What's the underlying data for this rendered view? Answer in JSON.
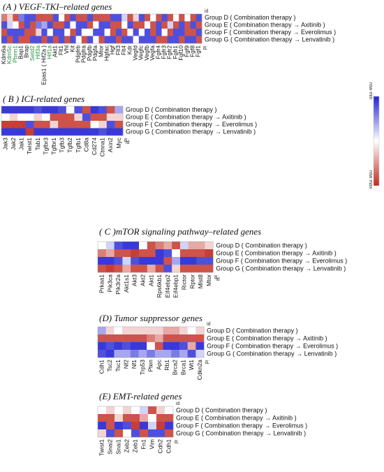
{
  "legend": {
    "top_label": "row min",
    "bottom_label": "row max",
    "colors": {
      "min": "#2323d6",
      "mid": "#ffffff",
      "max": "#c0281e"
    }
  },
  "id_label": "id",
  "chart_data": [
    {
      "type": "heatmap",
      "title": "(A ) VEGF-TKI–related genes",
      "rows": [
        "Group D ( Combination therapy )",
        "Group E ( Combination therapy → Axitinib )",
        "Group F ( Combination therapy → Everolimus )",
        "Group G ( Combination therapy → Lenvatinib )"
      ],
      "columns": [
        "Kdm6a",
        "Kdm5c",
        "Pbrm1",
        "Bap1",
        "Brap",
        "Setd2",
        "Hif3a",
        "Epas1 ( Hif2a )",
        "Hif1a",
        "Akt1",
        "Flt1",
        "Vhl",
        "Kit",
        "Pdgfrb",
        "Pdgfra",
        "Pdgfb",
        "Pdgfa",
        "Mtor",
        "Hgfac",
        "Hgf",
        "Flt3",
        "Flt4",
        "Kdr",
        "Vegfd",
        "Vegfc",
        "Vegfb",
        "Vegfa",
        "Fgfr4",
        "Fgfr3",
        "Fgfr2",
        "Fgfr1",
        "Fgf10",
        "Fgf9",
        "Fgf8",
        "Fgf1"
      ],
      "green_columns": [
        "Kdm5c",
        "Pbrm1",
        "Setd2",
        "Hif3a",
        "Hif1a"
      ],
      "values": [
        [
          0.8,
          0.6,
          0.9,
          0.2,
          0.1,
          0.1,
          0.9,
          0.9,
          0.9,
          0.1,
          0.5,
          0.9,
          0.1,
          0.9,
          0.9,
          0.1,
          0.9,
          0.9,
          0.9,
          0.1,
          0.1,
          0.4,
          0.9,
          0.6,
          0.1,
          0.9,
          0.5,
          0.9,
          0.1,
          0.9,
          0.5,
          0.9,
          0.5,
          0.9,
          0.1
        ],
        [
          0.1,
          0.4,
          0.5,
          0.9,
          0.1,
          0.9,
          0.2,
          0.3,
          0.1,
          0.9,
          0.9,
          0.1,
          0.5,
          0.1,
          0.1,
          0.9,
          0.5,
          0.1,
          0.1,
          0.9,
          0.9,
          0.5,
          0.1,
          0.9,
          0.9,
          0.5,
          0.9,
          0.1,
          0.9,
          0.4,
          0.9,
          0.1,
          0.9,
          0.1,
          0.9
        ],
        [
          0.9,
          0.1,
          0.1,
          0.1,
          0.9,
          0.9,
          0.6,
          0.1,
          0.5,
          0.1,
          0.1,
          0.5,
          0.9,
          0.1,
          0.5,
          0.5,
          0.1,
          0.1,
          0.5,
          0.9,
          0.1,
          0.9,
          0.5,
          0.1,
          0.5,
          0.1,
          0.9,
          0.1,
          0.5,
          0.9,
          0.1,
          0.1,
          0.9,
          0.9,
          0.1
        ],
        [
          0.1,
          0.9,
          0.1,
          0.9,
          0.9,
          0.1,
          0.1,
          0.9,
          0.1,
          0.9,
          0.1,
          0.9,
          0.1,
          0.5,
          0.9,
          0.1,
          0.5,
          0.9,
          0.1,
          0.1,
          0.9,
          0.1,
          0.1,
          0.5,
          0.1,
          0.1,
          0.1,
          0.9,
          0.9,
          0.1,
          0.1,
          0.9,
          0.1,
          0.1,
          0.9
        ]
      ]
    },
    {
      "type": "heatmap",
      "title": "( B ) ICI-related genes",
      "rows": [
        "Group D ( Combination therapy )",
        "Group E ( Combination therapy → Axitinib )",
        "Group F ( Combination therapy → Everolimus )",
        "Group G ( Combination therapy → Lenvatinib )"
      ],
      "columns": [
        "Jak3",
        "Jak2",
        "Jak1",
        "Twist1",
        "Tab1",
        "Tgfbr3",
        "Tgfbr1",
        "Tgfb3",
        "Tgfb2",
        "Tgfb1",
        "Cd8a",
        "Cd274",
        "Ctnna1",
        "Axin2",
        "Myc"
      ],
      "values": [
        [
          0.05,
          0.05,
          0.05,
          0.05,
          0.1,
          0.05,
          0.05,
          0.1,
          0.5,
          0.1,
          0.9,
          0.05,
          0.1,
          0.9,
          0.3
        ],
        [
          0.5,
          0.6,
          0.5,
          0.5,
          0.6,
          0.5,
          0.9,
          0.9,
          0.9,
          0.6,
          0.1,
          0.9,
          0.9,
          0.6,
          0.6
        ],
        [
          0.95,
          0.95,
          0.95,
          0.1,
          0.9,
          0.9,
          0.6,
          0.9,
          0.9,
          0.9,
          0.9,
          0.5,
          0.6,
          0.1,
          0.9
        ],
        [
          0.05,
          0.05,
          0.05,
          0.95,
          0.05,
          0.05,
          0.05,
          0.05,
          0.05,
          0.05,
          0.05,
          0.05,
          0.1,
          0.05,
          0.05
        ]
      ]
    },
    {
      "type": "heatmap",
      "title": "( C )mTOR signaling pathway–related genes",
      "rows": [
        "Group D ( Combination therapy )",
        "Group E ( Combination therapy → Axitinib )",
        "Group F ( Combination therapy → Everolimus )",
        "Group G ( Combination therapy → Lenvatinib )"
      ],
      "columns": [
        "Prkaa1",
        "Pik3ca",
        "Pik3r2a",
        "Akt1s1",
        "Akt3",
        "Akt2",
        "Akt1",
        "Rps6kb1",
        "Eif4ebp2",
        "Eif4ebp1",
        "Rictor",
        "Rptor",
        "Mlst8",
        "Mtor"
      ],
      "values": [
        [
          0.5,
          0.4,
          0.1,
          0.05,
          0.05,
          0.5,
          0.9,
          0.8,
          0.7,
          0.9,
          0.4,
          0.7,
          0.7,
          0.6
        ],
        [
          0.8,
          0.7,
          0.9,
          0.9,
          0.95,
          0.9,
          0.9,
          0.05,
          0.1,
          0.5,
          0.9,
          0.9,
          0.9,
          0.95
        ],
        [
          0.05,
          0.05,
          0.1,
          0.4,
          0.1,
          0.05,
          0.05,
          0.05,
          0.9,
          0.3,
          0.05,
          0.05,
          0.1,
          0.1
        ],
        [
          0.9,
          0.95,
          0.9,
          0.7,
          0.9,
          0.9,
          0.7,
          0.9,
          0.1,
          0.6,
          0.9,
          0.9,
          0.9,
          0.9
        ]
      ]
    },
    {
      "type": "heatmap",
      "title": "(D) Tumor suppressor genes",
      "rows": [
        "Group D ( Combination therapy )",
        "Group E ( Combination therapy → Axitinib )",
        "Group F ( Combination therapy → Everolimus )",
        "Group G ( Combination therapy → Lenvatinib )"
      ],
      "columns": [
        "Cdh1",
        "Tsc2",
        "Tsc1",
        "Nf2",
        "Nf1",
        "Trp53",
        "Pten",
        "Apc",
        "Rb1",
        "Brca2",
        "Brca1",
        "Wt1",
        "Cdkn2a"
      ],
      "values": [
        [
          0.3,
          0.6,
          0.5,
          0.6,
          0.6,
          0.6,
          0.6,
          0.6,
          0.7,
          0.7,
          0.6,
          0.5,
          0.6
        ],
        [
          0.9,
          0.9,
          0.9,
          0.9,
          0.9,
          0.9,
          0.8,
          0.7,
          0.9,
          0.9,
          0.9,
          0.9,
          0.9
        ],
        [
          0.05,
          0.1,
          0.05,
          0.1,
          0.05,
          0.05,
          0.5,
          0.9,
          0.05,
          0.05,
          0.1,
          0.7,
          0.05
        ],
        [
          0.1,
          0.05,
          0.3,
          0.3,
          0.2,
          0.3,
          0.2,
          0.3,
          0.3,
          0.2,
          0.3,
          0.1,
          0.4
        ]
      ]
    },
    {
      "type": "heatmap",
      "title": "(E) EMT-related genes",
      "rows": [
        "Group D ( Combination therapy )",
        "Group E ( Combination therapy → Axitinib )",
        "Group F ( Combination therapy → Everolimus )",
        "Group G ( Combination therapy → Lenvatinib )"
      ],
      "columns": [
        "Twist1",
        "Snai2",
        "Snai1",
        "Zeb2",
        "Zeb1",
        "Fn1",
        "Vim",
        "Cdh2",
        "Cdh1"
      ],
      "values": [
        [
          0.5,
          0.6,
          0.5,
          0.6,
          0.5,
          0.4,
          0.9,
          0.6,
          0.5
        ],
        [
          0.9,
          0.9,
          0.6,
          0.9,
          0.9,
          0.7,
          0.5,
          0.9,
          0.9
        ],
        [
          0.05,
          0.9,
          0.05,
          0.1,
          0.95,
          0.05,
          0.4,
          0.95,
          0.05
        ],
        [
          0.6,
          0.1,
          0.9,
          0.5,
          0.1,
          0.9,
          0.1,
          0.1,
          0.9
        ]
      ]
    }
  ]
}
